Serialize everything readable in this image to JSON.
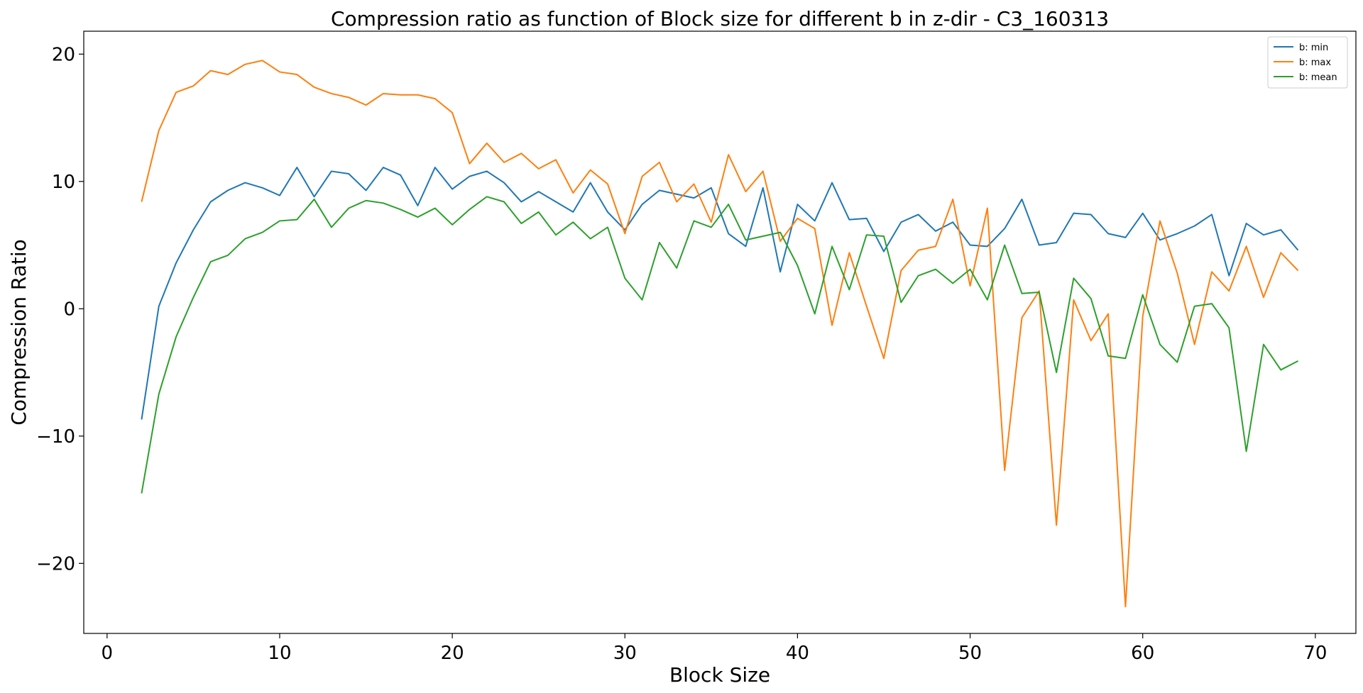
{
  "chart_data": {
    "type": "line",
    "title": "Compression ratio as function of Block size for different b in z-dir - C3_160313",
    "xlabel": "Block Size",
    "ylabel": "Compression Ratio",
    "xlim": [
      -1.35,
      72.35
    ],
    "ylim": [
      -25.5,
      21.8
    ],
    "xticks": [
      0,
      10,
      20,
      30,
      40,
      50,
      60,
      70
    ],
    "yticks": [
      -20,
      -10,
      0,
      10,
      20
    ],
    "ytick_labels": [
      "−20",
      "−10",
      "0",
      "10",
      "20"
    ],
    "grid": false,
    "legend_position": "top-right",
    "x": [
      2,
      3,
      4,
      5,
      6,
      7,
      8,
      9,
      10,
      11,
      12,
      13,
      14,
      15,
      16,
      17,
      18,
      19,
      20,
      21,
      22,
      23,
      24,
      25,
      26,
      27,
      28,
      29,
      30,
      31,
      32,
      33,
      34,
      35,
      36,
      37,
      38,
      39,
      40,
      41,
      42,
      43,
      44,
      45,
      46,
      47,
      48,
      49,
      50,
      51,
      52,
      53,
      54,
      55,
      56,
      57,
      58,
      59,
      60,
      61,
      62,
      63,
      64,
      65,
      66,
      67,
      68,
      69
    ],
    "series": [
      {
        "name": "b: min",
        "color": "#1f77b4",
        "values": [
          -8.7,
          0.2,
          3.6,
          6.2,
          8.4,
          9.3,
          9.9,
          9.5,
          8.9,
          11.1,
          8.8,
          10.8,
          10.6,
          9.3,
          11.1,
          10.5,
          8.1,
          11.1,
          9.4,
          10.4,
          10.8,
          9.9,
          8.4,
          9.2,
          8.4,
          7.6,
          9.9,
          7.6,
          6.2,
          8.2,
          9.3,
          9.0,
          8.7,
          9.5,
          5.9,
          4.9,
          9.5,
          2.9,
          8.2,
          6.9,
          9.9,
          7.0,
          7.1,
          4.5,
          6.8,
          7.4,
          6.1,
          6.8,
          5.0,
          4.9,
          6.3,
          8.6,
          5.0,
          5.2,
          7.5,
          7.4,
          5.9,
          5.6,
          7.5,
          5.4,
          5.9,
          6.5,
          7.4,
          2.6,
          6.7,
          5.8,
          6.2,
          4.6
        ]
      },
      {
        "name": "b: max",
        "color": "#ff7f0e",
        "values": [
          8.4,
          14.0,
          17.0,
          17.5,
          18.7,
          18.4,
          19.2,
          19.5,
          18.6,
          18.4,
          17.4,
          16.9,
          16.6,
          16.0,
          16.9,
          16.8,
          16.8,
          16.5,
          15.4,
          11.4,
          13.0,
          11.5,
          12.2,
          11.0,
          11.7,
          9.1,
          10.9,
          9.8,
          5.9,
          10.4,
          11.5,
          8.4,
          9.8,
          6.8,
          12.1,
          9.2,
          10.8,
          5.3,
          7.1,
          6.3,
          -1.3,
          4.4,
          0.2,
          -3.9,
          3.0,
          4.6,
          4.9,
          8.6,
          1.8,
          7.9,
          -12.7,
          -0.7,
          1.4,
          -17.0,
          0.7,
          -2.5,
          -0.4,
          -23.4,
          -0.6,
          6.9,
          2.8,
          -2.8,
          2.9,
          1.4,
          4.9,
          0.9,
          4.4,
          3.0
        ]
      },
      {
        "name": "b: mean",
        "color": "#2ca02c",
        "values": [
          -14.5,
          -6.7,
          -2.2,
          0.9,
          3.7,
          4.2,
          5.5,
          6.0,
          6.9,
          7.0,
          8.6,
          6.4,
          7.9,
          8.5,
          8.3,
          7.8,
          7.2,
          7.9,
          6.6,
          7.8,
          8.8,
          8.4,
          6.7,
          7.6,
          5.8,
          6.8,
          5.5,
          6.4,
          2.4,
          0.7,
          5.2,
          3.2,
          6.9,
          6.4,
          8.2,
          5.4,
          5.7,
          6.0,
          3.4,
          -0.4,
          4.9,
          1.5,
          5.8,
          5.7,
          0.5,
          2.6,
          3.1,
          2.0,
          3.1,
          0.7,
          5.0,
          1.2,
          1.3,
          -5.0,
          2.4,
          0.8,
          -3.7,
          -3.9,
          1.1,
          -2.8,
          -4.2,
          0.2,
          0.4,
          -1.5,
          -11.2,
          -2.8,
          -4.8,
          -4.1
        ]
      }
    ]
  }
}
